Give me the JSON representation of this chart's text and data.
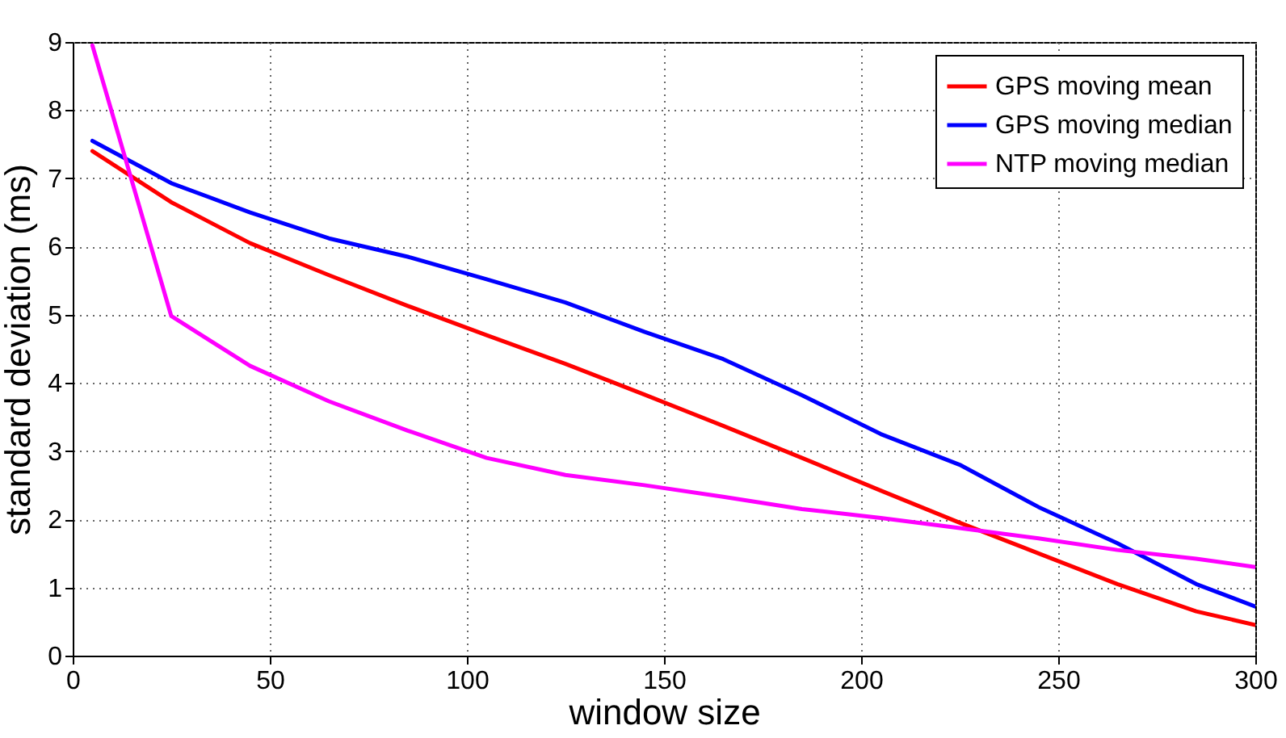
{
  "chart_data": {
    "type": "line",
    "xlabel": "window size",
    "ylabel": "standard deviation (ms)",
    "x": [
      5,
      25,
      45,
      65,
      85,
      105,
      125,
      145,
      165,
      185,
      205,
      225,
      245,
      265,
      285,
      300
    ],
    "series": [
      {
        "name": "GPS moving mean",
        "color": "#ff0000",
        "values": [
          7.4,
          6.65,
          6.05,
          5.58,
          5.13,
          4.7,
          4.28,
          3.83,
          3.37,
          2.9,
          2.42,
          1.95,
          1.5,
          1.05,
          0.65,
          0.45
        ]
      },
      {
        "name": "GPS moving median",
        "color": "#0000ff",
        "values": [
          7.55,
          6.93,
          6.5,
          6.12,
          5.85,
          5.52,
          5.18,
          4.75,
          4.35,
          3.82,
          3.25,
          2.8,
          2.18,
          1.65,
          1.05,
          0.72
        ]
      },
      {
        "name": "NTP moving median",
        "color": "#ff00ff",
        "values": [
          8.95,
          4.98,
          4.25,
          3.73,
          3.3,
          2.9,
          2.65,
          2.5,
          2.33,
          2.15,
          2.02,
          1.87,
          1.72,
          1.55,
          1.42,
          1.3
        ]
      }
    ],
    "xlim": [
      0,
      300
    ],
    "xticks": [
      0,
      50,
      100,
      150,
      200,
      250,
      300
    ],
    "ylim": [
      0,
      9
    ],
    "yticks": [
      0,
      1,
      2,
      3,
      4,
      5,
      6,
      7,
      8,
      9
    ],
    "grid": true,
    "legend": "top right",
    "marker": "none",
    "line_style": "solid"
  }
}
